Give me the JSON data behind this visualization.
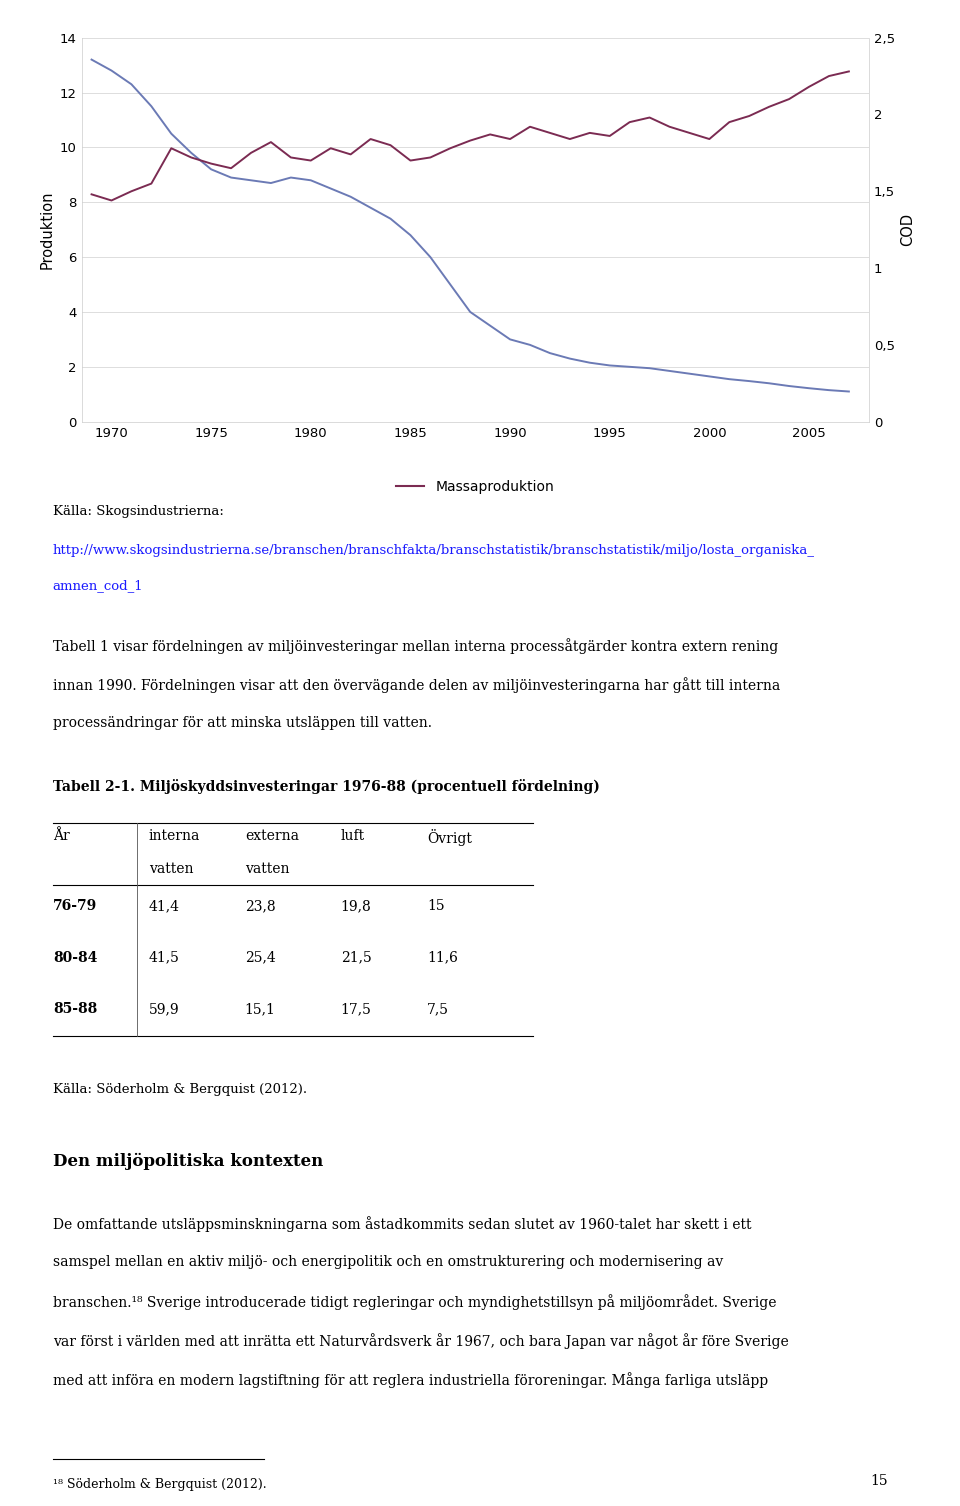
{
  "years_prod": [
    1969,
    1970,
    1971,
    1972,
    1973,
    1974,
    1975,
    1976,
    1977,
    1978,
    1979,
    1980,
    1981,
    1982,
    1983,
    1984,
    1985,
    1986,
    1987,
    1988,
    1989,
    1990,
    1991,
    1992,
    1993,
    1994,
    1995,
    1996,
    1997,
    1998,
    1999,
    2000,
    2001,
    2002,
    2003,
    2004,
    2005,
    2006,
    2007
  ],
  "produktion": [
    13.2,
    12.8,
    12.3,
    11.5,
    10.5,
    9.8,
    9.2,
    8.9,
    8.8,
    8.7,
    8.9,
    8.8,
    8.5,
    8.2,
    7.8,
    7.4,
    6.8,
    6.0,
    5.0,
    4.0,
    3.5,
    3.0,
    2.8,
    2.5,
    2.3,
    2.15,
    2.05,
    2.0,
    1.95,
    1.85,
    1.75,
    1.65,
    1.55,
    1.48,
    1.4,
    1.3,
    1.22,
    1.15,
    1.1
  ],
  "years_cod": [
    1969,
    1970,
    1971,
    1972,
    1973,
    1974,
    1975,
    1976,
    1977,
    1978,
    1979,
    1980,
    1981,
    1982,
    1983,
    1984,
    1985,
    1986,
    1987,
    1988,
    1989,
    1990,
    1991,
    1992,
    1993,
    1994,
    1995,
    1996,
    1997,
    1998,
    1999,
    2000,
    2001,
    2002,
    2003,
    2004,
    2005,
    2006,
    2007
  ],
  "cod": [
    1.48,
    1.44,
    1.5,
    1.55,
    1.78,
    1.72,
    1.68,
    1.65,
    1.75,
    1.82,
    1.72,
    1.7,
    1.78,
    1.74,
    1.84,
    1.8,
    1.7,
    1.72,
    1.78,
    1.83,
    1.87,
    1.84,
    1.92,
    1.88,
    1.84,
    1.88,
    1.86,
    1.95,
    1.98,
    1.92,
    1.88,
    1.84,
    1.95,
    1.99,
    2.05,
    2.1,
    2.18,
    2.25,
    2.28
  ],
  "produktion_color": "#6b7ab5",
  "cod_color": "#7b2b52",
  "left_ylabel": "Produktion",
  "right_ylabel": "COD",
  "xlim": [
    1968.5,
    2008
  ],
  "left_ylim": [
    0,
    14
  ],
  "right_ylim": [
    0,
    2.5
  ],
  "left_yticks": [
    0,
    2,
    4,
    6,
    8,
    10,
    12,
    14
  ],
  "right_ytick_vals": [
    0,
    0.5,
    1.0,
    1.5,
    2.0,
    2.5
  ],
  "right_ytick_labels": [
    "0",
    "0,5",
    "1",
    "1,5",
    "2",
    "2,5"
  ],
  "xticks": [
    1970,
    1975,
    1980,
    1985,
    1990,
    1995,
    2000,
    2005
  ],
  "legend_label": "Massaproduktion",
  "source_text": "Källa: Skogsindustrierna:",
  "source_url1": "http://www.skogsindustrierna.se/branschen/branschfakta/branschstatistik/branschstatistik/miljo/losta_organiska_",
  "source_url2": "amnen_cod_1",
  "para1_lines": [
    "Tabell 1 visar fördelningen av miljöinvesteringar mellan interna processåtgärder kontra extern rening",
    "innan 1990. Fördelningen visar att den övervägande delen av miljöinvesteringarna har gått till interna",
    "processändringar för att minska utsläppen till vatten."
  ],
  "table_title": "Tabell 2-1. Miljöskyddsinvesteringar 1976-88 (procentuell fördelning)",
  "table_col_headers_row1": [
    "År",
    "interna",
    "externa",
    "luft",
    "Övrigt"
  ],
  "table_col_headers_row2": [
    "",
    "vatten",
    "vatten",
    "",
    ""
  ],
  "table_rows": [
    [
      "76-79",
      "41,4",
      "23,8",
      "19,8",
      "15"
    ],
    [
      "80-84",
      "41,5",
      "25,4",
      "21,5",
      "11,6"
    ],
    [
      "85-88",
      "59,9",
      "15,1",
      "17,5",
      "7,5"
    ]
  ],
  "source2": "Källa: Söderholm & Bergquist (2012).",
  "section_title": "Den miljöpolitiska kontexten",
  "para2_lines": [
    "De omfattande utsläppsminskningarna som åstadkommits sedan slutet av 1960-talet har skett i ett",
    "samspel mellan en aktiv miljö- och energipolitik och en omstrukturering och modernisering av",
    "branschen.¹⁸ Sverige introducerade tidigt regleringar och myndighetstillsyn på miljöområdet. Sverige",
    "var först i världen med att inrätta ett Naturvårdsverk år 1967, och bara Japan var något år före Sverige",
    "med att införa en modern lagstiftning för att reglera industriella föroreningar. Många farliga utsläpp"
  ],
  "footnote": "¹⁸ Söderholm & Bergquist (2012).",
  "page_number": "15",
  "background_color": "#ffffff",
  "chart_border_color": "#cccccc",
  "grid_color": "#d8d8d8"
}
